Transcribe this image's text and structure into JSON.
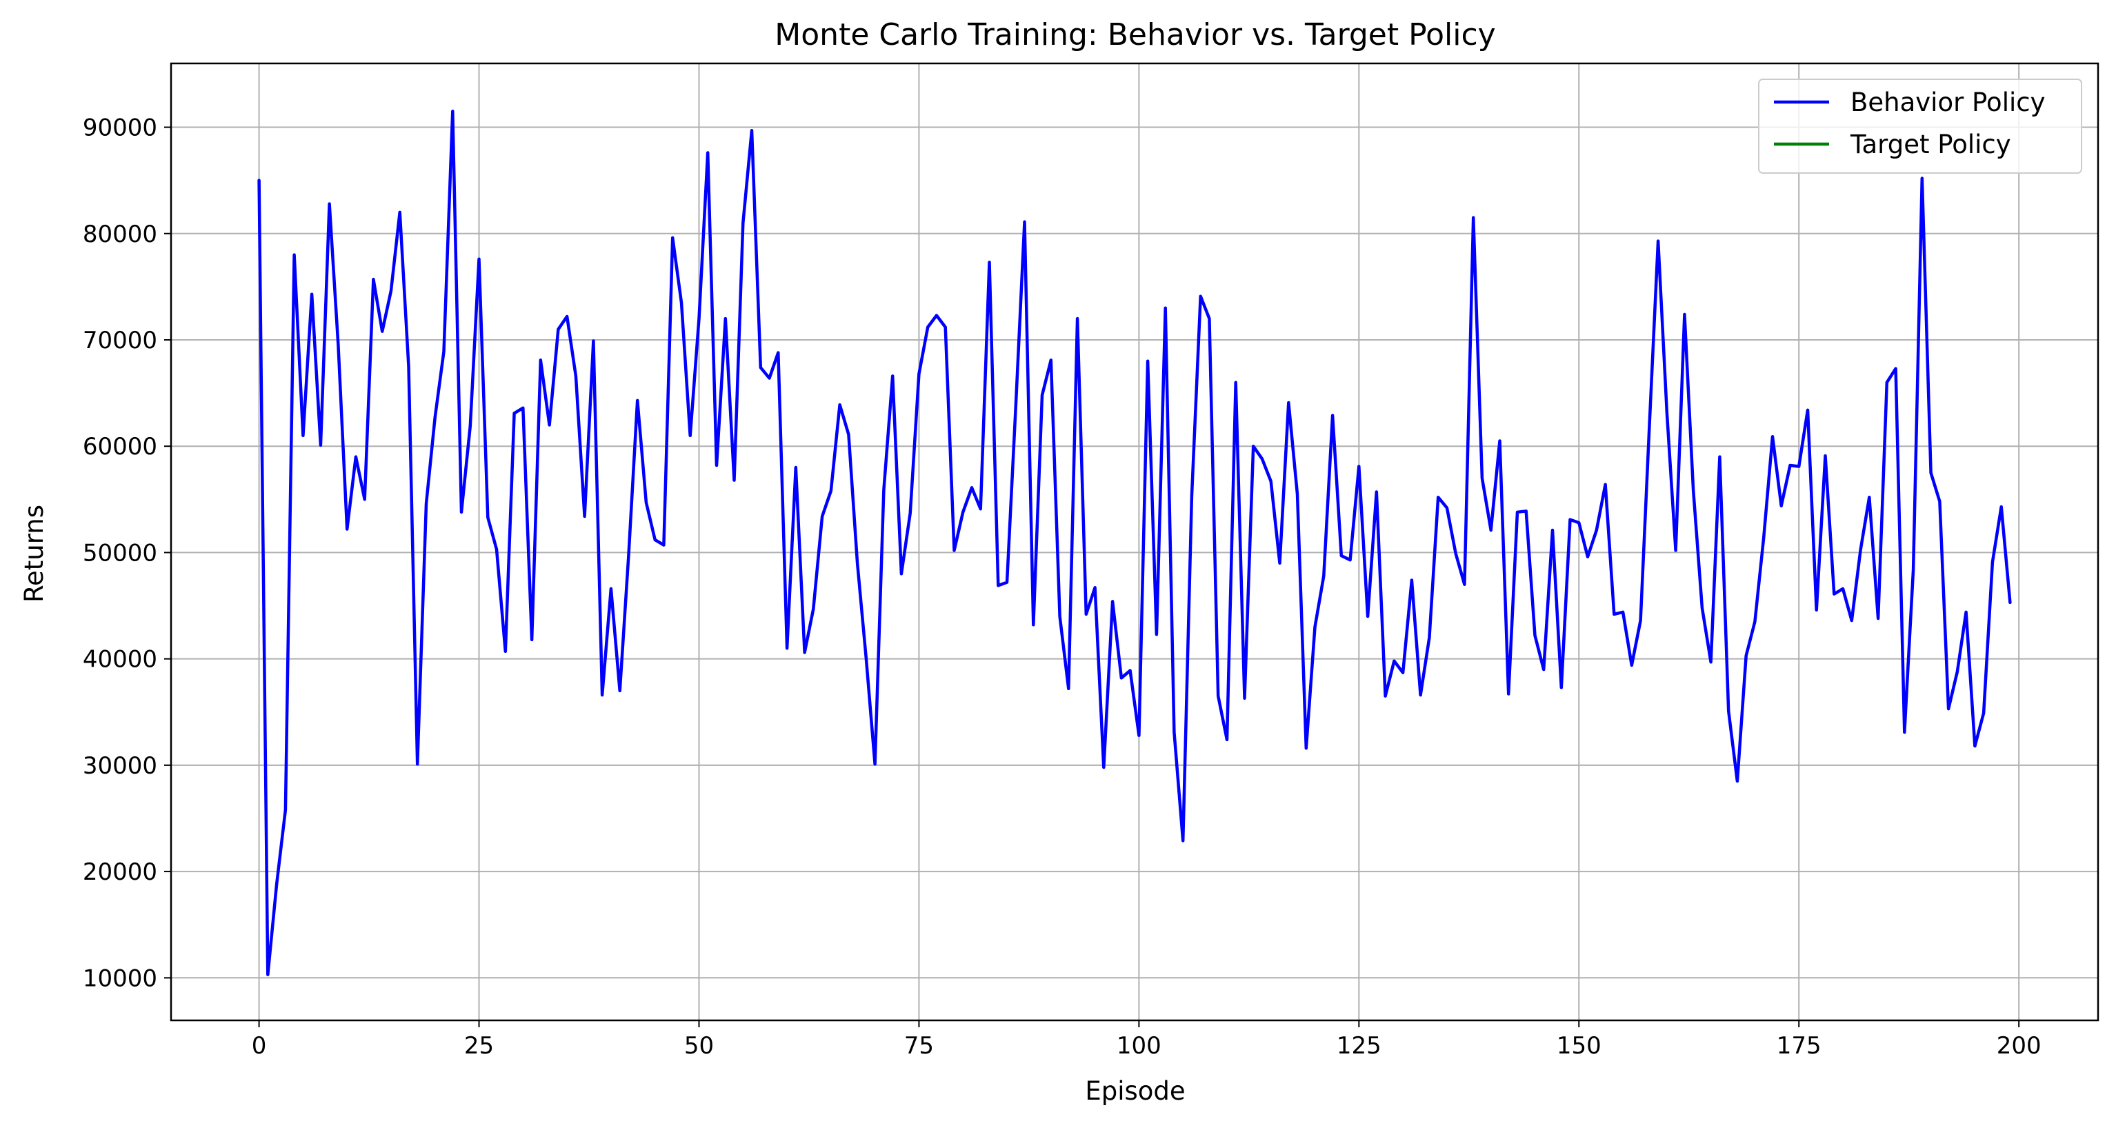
{
  "chart_data": {
    "type": "line",
    "title": "Monte Carlo Training: Behavior vs. Target Policy",
    "xlabel": "Episode",
    "ylabel": "Returns",
    "xlim": [
      -10,
      209
    ],
    "ylim": [
      6000,
      96000
    ],
    "xticks": [
      0,
      25,
      50,
      75,
      100,
      125,
      150,
      175,
      200
    ],
    "yticks": [
      10000,
      20000,
      30000,
      40000,
      50000,
      60000,
      70000,
      80000,
      90000
    ],
    "grid": true,
    "legend_position": "top-right",
    "series": [
      {
        "name": "Behavior Policy",
        "color": "#0000ff",
        "x_start": 0,
        "x_step": 1,
        "values": [
          85000,
          10300,
          18800,
          25800,
          78000,
          61000,
          74300,
          60100,
          82800,
          69500,
          52200,
          59000,
          55000,
          75700,
          70800,
          74600,
          82000,
          67500,
          30100,
          54600,
          62700,
          68900,
          91500,
          53800,
          61900,
          77600,
          53300,
          50300,
          40700,
          63100,
          63600,
          41800,
          68100,
          62000,
          71000,
          72200,
          66600,
          53400,
          69900,
          36600,
          46600,
          37000,
          49700,
          64300,
          54700,
          51200,
          50700,
          79600,
          73500,
          61000,
          72000,
          87600,
          58200,
          72000,
          56800,
          81000,
          89700,
          67400,
          66400,
          68800,
          41000,
          58000,
          40600,
          44700,
          53400,
          55800,
          63900,
          61100,
          49000,
          40000,
          30100,
          55900,
          66600,
          48000,
          53700,
          66800,
          71200,
          72300,
          71200,
          50200,
          53800,
          56100,
          54100,
          77300,
          46900,
          47200,
          63800,
          81100,
          43200,
          64800,
          68100,
          44000,
          37200,
          72000,
          44200,
          46700,
          29800,
          45400,
          38200,
          38900,
          32800,
          68000,
          42300,
          73000,
          33100,
          22900,
          55300,
          74100,
          72000,
          36500,
          32400,
          66000,
          36300,
          60000,
          58800,
          56700,
          49000,
          64100,
          55500,
          31600,
          43000,
          47800,
          62900,
          49700,
          49300,
          58100,
          44000,
          55700,
          36500,
          39800,
          38700,
          47400,
          36600,
          42000,
          55200,
          54200,
          49900,
          47000,
          81500,
          57000,
          52100,
          60500,
          36700,
          53800,
          53900,
          42200,
          39000,
          52100,
          37300,
          53100,
          52800,
          49600,
          52100,
          56400,
          44200,
          44400,
          39400,
          43600,
          61700,
          79300,
          63100,
          50200,
          72400,
          55900,
          44800,
          39700,
          59000,
          35100,
          28500,
          40300,
          43500,
          51400,
          60900,
          54400,
          58200,
          58100,
          63400,
          44600,
          59100,
          46100,
          46600,
          43600,
          50200,
          55200,
          43800,
          66000,
          67300,
          33100,
          48400,
          85200,
          57500,
          54800,
          35300,
          38800,
          44400,
          31800,
          34900,
          49100,
          54300,
          45300
        ]
      },
      {
        "name": "Target Policy",
        "color": "#008000",
        "x_start": 0,
        "x_step": 1,
        "values": []
      }
    ]
  }
}
